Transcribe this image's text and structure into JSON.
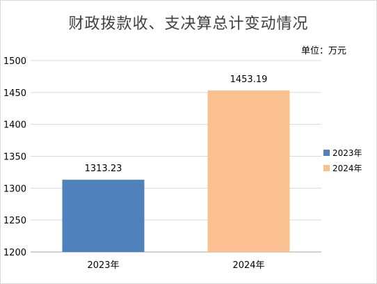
{
  "chart_data": {
    "type": "bar",
    "title": "财政拨款收、支决算总计变动情况",
    "unit_label": "单位：万元",
    "categories": [
      "2023年",
      "2024年"
    ],
    "values": [
      1313.23,
      1453.19
    ],
    "value_labels": [
      "1313.23",
      "1453.19"
    ],
    "colors": [
      "#4f81bd",
      "#fac090"
    ],
    "legend": [
      "2023年",
      "2024年"
    ],
    "legend_position": "right",
    "ylim": [
      1200,
      1500
    ],
    "yticks": [
      1200,
      1250,
      1300,
      1350,
      1400,
      1450,
      1500
    ],
    "ytick_labels": [
      "1200",
      "1250",
      "1300",
      "1350",
      "1400",
      "1450",
      "1500"
    ],
    "grid": true
  }
}
